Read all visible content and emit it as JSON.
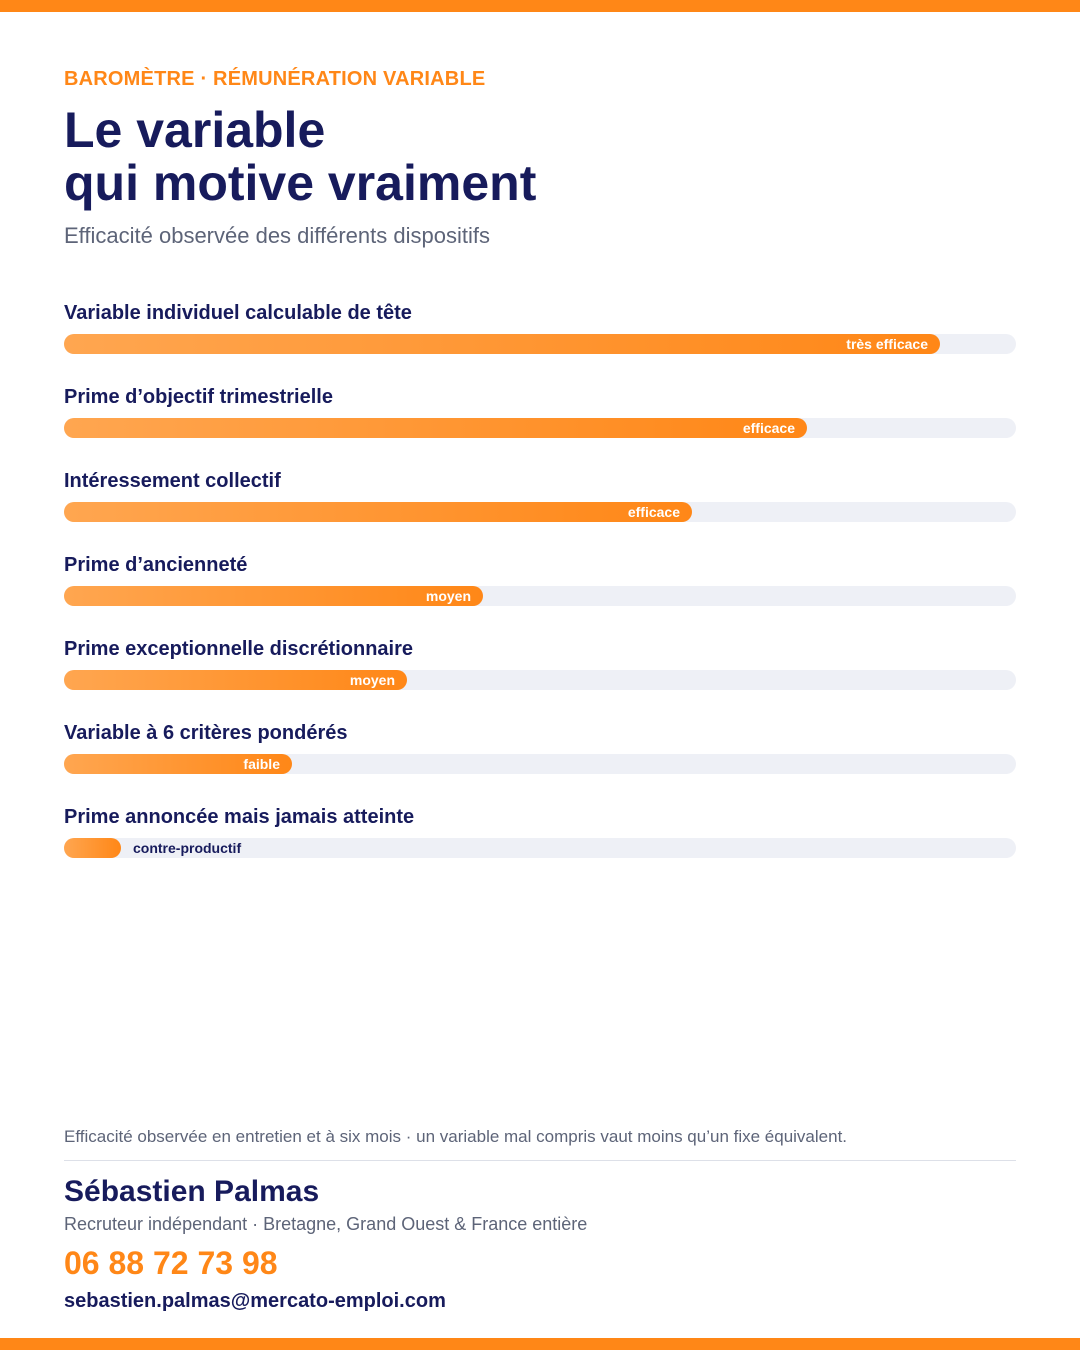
{
  "eyebrow": "BAROMÈTRE · RÉMUNÉRATION VARIABLE",
  "title_line1": "Le variable",
  "title_line2": "qui motive vraiment",
  "subtitle": "Efficacité observée des différents dispositifs",
  "colors": {
    "accent": "#ff8717",
    "navy": "#171b5c",
    "muted": "#5d6478",
    "track": "#eef0f6"
  },
  "chart_data": {
    "type": "bar",
    "orientation": "horizontal",
    "categories": [
      "Variable individuel calculable de tête",
      "Prime d’objectif trimestrielle",
      "Intéressement collectif",
      "Prime d’ancienneté",
      "Prime exceptionnelle discrétionnaire",
      "Variable à 6 critères pondérés",
      "Prime annoncée mais jamais atteinte"
    ],
    "values": [
      92,
      78,
      66,
      44,
      36,
      24,
      6
    ],
    "value_labels": [
      "très efficace",
      "efficace",
      "efficace",
      "moyen",
      "moyen",
      "faible",
      "contre-productif"
    ],
    "xlim": [
      0,
      100
    ]
  },
  "footnote": "Efficacité observée en entretien et à six mois · un variable mal compris vaut moins qu’un fixe équivalent.",
  "contact": {
    "name": "Sébastien Palmas",
    "role": "Recruteur indépendant · Bretagne, Grand Ouest & France entière",
    "phone": "06 88 72 73 98",
    "email": "sebastien.palmas@mercato-emploi.com"
  }
}
